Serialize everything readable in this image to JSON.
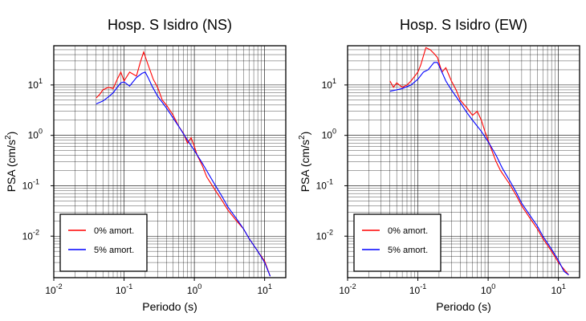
{
  "chart_data": [
    {
      "type": "line",
      "title": "Hosp. S Isidro (NS)",
      "xlabel": "Periodo (s)",
      "ylabel_main": "PSA (cm/s",
      "ylabel_sup": "2",
      "ylabel_end": ")",
      "xscale": "log",
      "yscale": "log",
      "xlim": [
        0.01,
        20
      ],
      "ylim": [
        0.0015,
        60
      ],
      "grid": true,
      "legend_position": "bottom-left",
      "xtick_labels": [
        {
          "value": 0.01,
          "base": "10",
          "exp": "-2"
        },
        {
          "value": 0.1,
          "base": "10",
          "exp": "-1"
        },
        {
          "value": 1,
          "base": "10",
          "exp": "0"
        },
        {
          "value": 10,
          "base": "10",
          "exp": "1"
        }
      ],
      "ytick_labels": [
        {
          "value": 0.01,
          "base": "10",
          "exp": "-2"
        },
        {
          "value": 0.1,
          "base": "10",
          "exp": "-1"
        },
        {
          "value": 1,
          "base": "10",
          "exp": "0"
        },
        {
          "value": 10,
          "base": "10",
          "exp": "1"
        }
      ],
      "series": [
        {
          "name": "0% amort.",
          "color": "#ff0000",
          "points": [
            [
              0.04,
              5.5
            ],
            [
              0.045,
              6.5
            ],
            [
              0.05,
              8
            ],
            [
              0.06,
              9
            ],
            [
              0.07,
              8.5
            ],
            [
              0.08,
              13
            ],
            [
              0.09,
              18
            ],
            [
              0.1,
              12
            ],
            [
              0.12,
              18
            ],
            [
              0.15,
              15
            ],
            [
              0.17,
              28
            ],
            [
              0.19,
              45
            ],
            [
              0.22,
              25
            ],
            [
              0.26,
              13
            ],
            [
              0.3,
              9
            ],
            [
              0.35,
              5
            ],
            [
              0.4,
              4
            ],
            [
              0.5,
              2.5
            ],
            [
              0.6,
              1.5
            ],
            [
              0.7,
              1.1
            ],
            [
              0.8,
              0.7
            ],
            [
              0.9,
              0.9
            ],
            [
              1.0,
              0.6
            ],
            [
              1.1,
              0.4
            ],
            [
              1.3,
              0.25
            ],
            [
              1.5,
              0.15
            ],
            [
              2.0,
              0.08
            ],
            [
              2.5,
              0.05
            ],
            [
              3.0,
              0.033
            ],
            [
              4.0,
              0.02
            ],
            [
              5.0,
              0.014
            ],
            [
              6.0,
              0.009
            ],
            [
              8.0,
              0.005
            ],
            [
              10.0,
              0.0032
            ],
            [
              12.0,
              0.0016
            ]
          ]
        },
        {
          "name": "5% amort.",
          "color": "#0000ff",
          "points": [
            [
              0.04,
              4.2
            ],
            [
              0.05,
              4.8
            ],
            [
              0.06,
              5.8
            ],
            [
              0.07,
              7
            ],
            [
              0.08,
              9
            ],
            [
              0.09,
              11
            ],
            [
              0.1,
              11.5
            ],
            [
              0.12,
              9.5
            ],
            [
              0.15,
              14
            ],
            [
              0.18,
              17
            ],
            [
              0.2,
              18
            ],
            [
              0.22,
              14
            ],
            [
              0.25,
              9.5
            ],
            [
              0.3,
              6
            ],
            [
              0.4,
              3.5
            ],
            [
              0.5,
              2.2
            ],
            [
              0.6,
              1.5
            ],
            [
              0.8,
              0.8
            ],
            [
              1.0,
              0.5
            ],
            [
              1.3,
              0.28
            ],
            [
              1.6,
              0.17
            ],
            [
              2.0,
              0.1
            ],
            [
              2.5,
              0.06
            ],
            [
              3.0,
              0.038
            ],
            [
              4.0,
              0.022
            ],
            [
              5.0,
              0.014
            ],
            [
              6.0,
              0.009
            ],
            [
              8.0,
              0.005
            ],
            [
              10.0,
              0.003
            ],
            [
              12.0,
              0.0016
            ]
          ]
        }
      ]
    },
    {
      "type": "line",
      "title": "Hosp. S Isidro (EW)",
      "xlabel": "Periodo (s)",
      "ylabel_main": "PSA (cm/s",
      "ylabel_sup": "2",
      "ylabel_end": ")",
      "xscale": "log",
      "yscale": "log",
      "xlim": [
        0.01,
        20
      ],
      "ylim": [
        0.0015,
        60
      ],
      "grid": true,
      "legend_position": "bottom-left",
      "xtick_labels": [
        {
          "value": 0.01,
          "base": "10",
          "exp": "-2"
        },
        {
          "value": 0.1,
          "base": "10",
          "exp": "-1"
        },
        {
          "value": 1,
          "base": "10",
          "exp": "0"
        },
        {
          "value": 10,
          "base": "10",
          "exp": "1"
        }
      ],
      "ytick_labels": [
        {
          "value": 0.01,
          "base": "10",
          "exp": "-2"
        },
        {
          "value": 0.1,
          "base": "10",
          "exp": "-1"
        },
        {
          "value": 1,
          "base": "10",
          "exp": "0"
        },
        {
          "value": 10,
          "base": "10",
          "exp": "1"
        }
      ],
      "series": [
        {
          "name": "0% amort.",
          "color": "#ff0000",
          "points": [
            [
              0.04,
              12
            ],
            [
              0.045,
              9
            ],
            [
              0.05,
              11
            ],
            [
              0.06,
              9
            ],
            [
              0.07,
              10
            ],
            [
              0.08,
              12
            ],
            [
              0.1,
              18
            ],
            [
              0.11,
              25
            ],
            [
              0.13,
              55
            ],
            [
              0.15,
              50
            ],
            [
              0.17,
              42
            ],
            [
              0.19,
              35
            ],
            [
              0.22,
              18
            ],
            [
              0.25,
              22
            ],
            [
              0.3,
              12
            ],
            [
              0.35,
              8
            ],
            [
              0.4,
              5
            ],
            [
              0.5,
              3.5
            ],
            [
              0.6,
              2.5
            ],
            [
              0.7,
              3
            ],
            [
              0.8,
              2
            ],
            [
              0.9,
              1.2
            ],
            [
              1.0,
              0.8
            ],
            [
              1.1,
              0.55
            ],
            [
              1.3,
              0.3
            ],
            [
              1.5,
              0.2
            ],
            [
              2.0,
              0.11
            ],
            [
              2.5,
              0.065
            ],
            [
              3.0,
              0.04
            ],
            [
              4.0,
              0.022
            ],
            [
              5.0,
              0.014
            ],
            [
              6.0,
              0.009
            ],
            [
              8.0,
              0.005
            ],
            [
              10.0,
              0.003
            ],
            [
              12.0,
              0.0022
            ],
            [
              14.0,
              0.0017
            ]
          ]
        },
        {
          "name": "5% amort.",
          "color": "#0000ff",
          "points": [
            [
              0.04,
              7.5
            ],
            [
              0.05,
              8
            ],
            [
              0.06,
              8.5
            ],
            [
              0.08,
              10
            ],
            [
              0.1,
              13
            ],
            [
              0.12,
              18
            ],
            [
              0.14,
              20
            ],
            [
              0.17,
              28
            ],
            [
              0.19,
              28
            ],
            [
              0.22,
              18
            ],
            [
              0.25,
              12
            ],
            [
              0.3,
              8
            ],
            [
              0.4,
              4.5
            ],
            [
              0.5,
              2.8
            ],
            [
              0.6,
              2
            ],
            [
              0.8,
              1.2
            ],
            [
              1.0,
              0.75
            ],
            [
              1.3,
              0.4
            ],
            [
              1.6,
              0.22
            ],
            [
              2.0,
              0.13
            ],
            [
              2.5,
              0.075
            ],
            [
              3.0,
              0.045
            ],
            [
              4.0,
              0.025
            ],
            [
              5.0,
              0.016
            ],
            [
              6.0,
              0.01
            ],
            [
              8.0,
              0.0055
            ],
            [
              10.0,
              0.0033
            ],
            [
              12.0,
              0.002
            ],
            [
              14.0,
              0.0017
            ]
          ]
        }
      ]
    }
  ]
}
